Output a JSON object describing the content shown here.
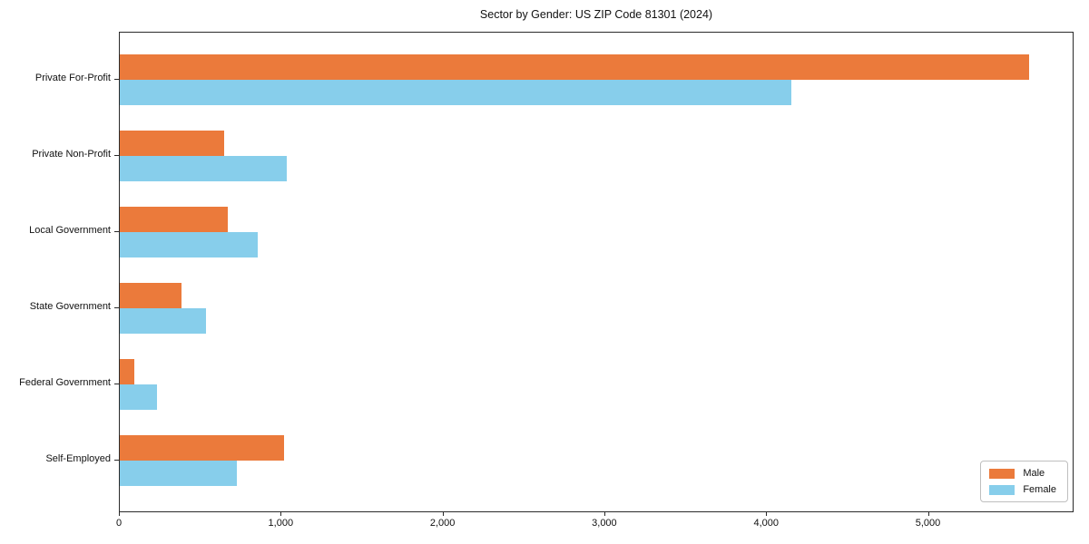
{
  "chart_data": {
    "type": "bar",
    "orientation": "horizontal",
    "title": "Sector by Gender: US ZIP Code 81301 (2024)",
    "categories": [
      "Private For-Profit",
      "Private Non-Profit",
      "Local Government",
      "State Government",
      "Federal Government",
      "Self-Employed"
    ],
    "series": [
      {
        "name": "Male",
        "color": "#EB7A3B",
        "values": [
          5630,
          645,
          670,
          382,
          90,
          1015
        ]
      },
      {
        "name": "Female",
        "color": "#87CEEB",
        "values": [
          4160,
          1035,
          855,
          532,
          233,
          725
        ]
      }
    ],
    "xlabel": "",
    "ylabel": "",
    "xlim": [
      0,
      5900
    ],
    "xticks": [
      0,
      1000,
      2000,
      3000,
      4000,
      5000
    ],
    "xtick_labels": [
      "0",
      "1,000",
      "2,000",
      "3,000",
      "4,000",
      "5,000"
    ],
    "grid": false,
    "legend_position": "lower right",
    "plot_border": true,
    "background_color": "#ffffff",
    "spine_color": "#2a2a2a"
  }
}
